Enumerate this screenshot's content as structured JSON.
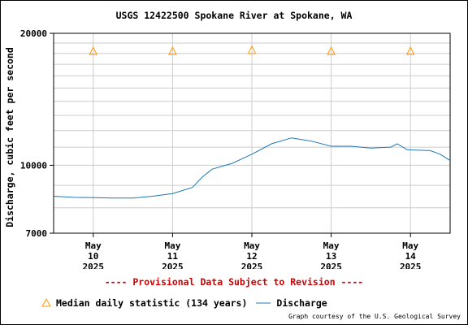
{
  "title": "USGS 12422500 Spokane River at Spokane, WA",
  "provisional_note": "---- Provisional Data Subject to Revision ----",
  "credit": "Graph courtesy of the U.S. Geological Survey",
  "colors": {
    "discharge": "#1f77b4",
    "median": "#ff9900",
    "provisional": "#cc0000"
  },
  "chart_data": {
    "type": "line",
    "title": "USGS 12422500 Spokane River at Spokane, WA",
    "xlabel": "",
    "ylabel": "Discharge, cubic feet per second",
    "y_scale": "log",
    "ylim": [
      7000,
      20000
    ],
    "y_ticks": [
      7000,
      10000,
      20000
    ],
    "y_tick_labels": [
      "7000",
      "10000",
      "20000"
    ],
    "xlim": [
      "2025-05-09T12:00",
      "2025-05-14T12:00"
    ],
    "x_ticks": [
      {
        "date": "2025-05-10",
        "label": [
          "May",
          "10",
          "2025"
        ]
      },
      {
        "date": "2025-05-11",
        "label": [
          "May",
          "11",
          "2025"
        ]
      },
      {
        "date": "2025-05-12",
        "label": [
          "May",
          "12",
          "2025"
        ]
      },
      {
        "date": "2025-05-13",
        "label": [
          "May",
          "13",
          "2025"
        ]
      },
      {
        "date": "2025-05-14",
        "label": [
          "May",
          "14",
          "2025"
        ]
      }
    ],
    "grid": true,
    "legend_position": "bottom",
    "series": [
      {
        "name": "Discharge",
        "style": "line",
        "color": "#1f77b4",
        "points": [
          [
            "2025-05-09T12:00",
            8500
          ],
          [
            "2025-05-09T18:00",
            8450
          ],
          [
            "2025-05-10T00:00",
            8440
          ],
          [
            "2025-05-10T06:00",
            8420
          ],
          [
            "2025-05-10T12:00",
            8420
          ],
          [
            "2025-05-10T18:00",
            8500
          ],
          [
            "2025-05-11T00:00",
            8620
          ],
          [
            "2025-05-11T06:00",
            8900
          ],
          [
            "2025-05-11T09:00",
            9400
          ],
          [
            "2025-05-11T12:00",
            9800
          ],
          [
            "2025-05-11T18:00",
            10100
          ],
          [
            "2025-05-12T00:00",
            10600
          ],
          [
            "2025-05-12T06:00",
            11200
          ],
          [
            "2025-05-12T12:00",
            11550
          ],
          [
            "2025-05-12T18:00",
            11350
          ],
          [
            "2025-05-13T00:00",
            11050
          ],
          [
            "2025-05-13T06:00",
            11050
          ],
          [
            "2025-05-13T12:00",
            10950
          ],
          [
            "2025-05-13T18:00",
            11000
          ],
          [
            "2025-05-13T20:00",
            11200
          ],
          [
            "2025-05-13T23:00",
            10850
          ],
          [
            "2025-05-14T06:00",
            10800
          ],
          [
            "2025-05-14T09:00",
            10600
          ],
          [
            "2025-05-14T12:00",
            10250
          ]
        ]
      },
      {
        "name": "Median daily statistic (134 years)",
        "style": "marker",
        "marker": "triangle",
        "color": "#ff9900",
        "points": [
          [
            "2025-05-10T00:00",
            18200
          ],
          [
            "2025-05-11T00:00",
            18200
          ],
          [
            "2025-05-12T00:00",
            18300
          ],
          [
            "2025-05-13T00:00",
            18200
          ],
          [
            "2025-05-14T00:00",
            18200
          ]
        ]
      }
    ]
  }
}
